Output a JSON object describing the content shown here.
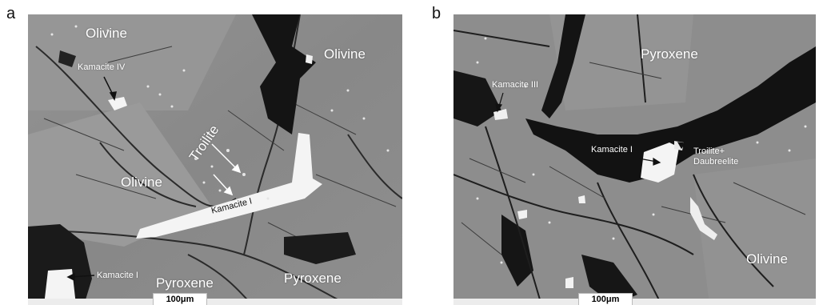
{
  "panel_a": {
    "letter": "a",
    "labels": {
      "olivine_top": "Olivine",
      "olivine_right": "Olivine",
      "olivine_mid": "Olivine",
      "kamacite_iv": "Kamacite IV",
      "troilite": "Troilite",
      "kamacite_i_center": "Kamacite I",
      "kamacite_i_left": "Kamacite I",
      "pyroxene_left": "Pyroxene",
      "pyroxene_right": "Pyroxene"
    },
    "scale_bar": "100μm"
  },
  "panel_b": {
    "letter": "b",
    "labels": {
      "pyroxene": "Pyroxene",
      "kamacite_iii": "Kamacite III",
      "kamacite_i": "Kamacite I",
      "troilite_daubreelite_1": "Troilite+",
      "troilite_daubreelite_2": "Daubreelite",
      "olivine": "Olivine"
    },
    "scale_bar": "100μm"
  },
  "colors": {
    "matrix_gray": "#8b8b8b",
    "metal_white": "#f4f4f4",
    "void_black": "#141414"
  }
}
